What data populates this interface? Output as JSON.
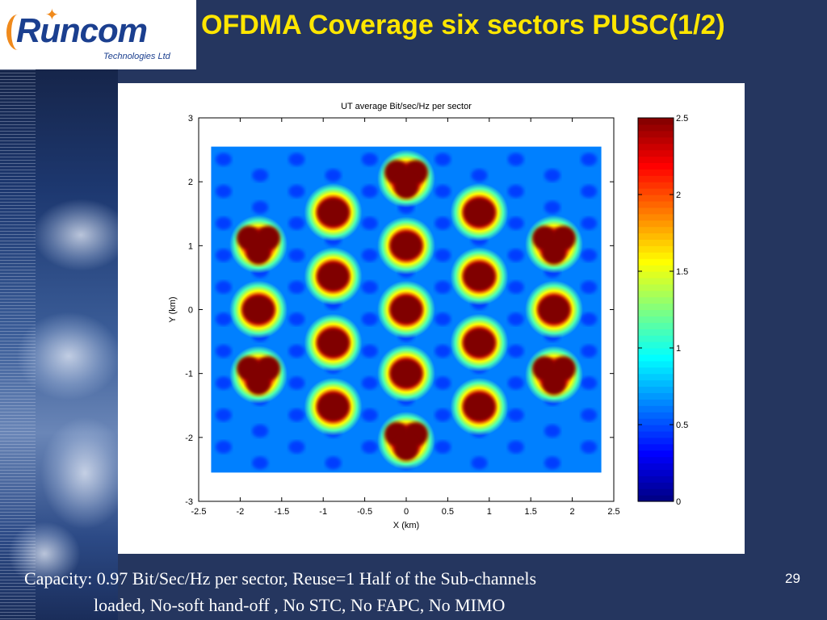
{
  "slide": {
    "title": "OFDMA Coverage six sectors PUSC(1/2)",
    "caption_line1": "Capacity: 0.97 Bit/Sec/Hz per sector, Reuse=1 Half of the Sub-channels",
    "caption_line2": "loaded, No-soft hand-off , No STC, No FAPC, No MIMO",
    "page_number": "29"
  },
  "logo": {
    "brand": "Runcom",
    "tagline": "Technologies Ltd",
    "brand_color": "#1b3f8f",
    "accent_color": "#f08a1c"
  },
  "colors": {
    "background": "#25365f",
    "title": "#ffe600",
    "caption": "#ffffff"
  },
  "chart_data": {
    "type": "heatmap",
    "title": "UT average Bit/sec/Hz per sector",
    "xlabel": "X (km)",
    "ylabel": "Y (km)",
    "xlim": [
      -2.5,
      2.5
    ],
    "ylim": [
      -3,
      3
    ],
    "xticks": [
      -2.5,
      -2,
      -1.5,
      -1,
      -0.5,
      0,
      0.5,
      1,
      1.5,
      2,
      2.5
    ],
    "yticks": [
      -3,
      -2,
      -1,
      0,
      1,
      2,
      3
    ],
    "colormap": "jet",
    "colorbar": {
      "range": [
        0,
        2.5
      ],
      "ticks": [
        0,
        0.5,
        1,
        1.5,
        2,
        2.5
      ]
    },
    "data_extent": {
      "x": [
        -2.35,
        2.35
      ],
      "y": [
        -2.55,
        2.55
      ]
    },
    "background_level": 0.5,
    "peak_level": 2.5,
    "hotspots": [
      {
        "x": 0,
        "y": 2.05,
        "shape": "clover"
      },
      {
        "x": 0,
        "y": -2.05,
        "shape": "clover"
      },
      {
        "x": 1.78,
        "y": 1.02,
        "shape": "clover"
      },
      {
        "x": -1.78,
        "y": 1.02,
        "shape": "clover"
      },
      {
        "x": 1.78,
        "y": -1.02,
        "shape": "clover"
      },
      {
        "x": -1.78,
        "y": -1.02,
        "shape": "clover"
      },
      {
        "x": -0.88,
        "y": 1.52,
        "shape": "blob"
      },
      {
        "x": 0.88,
        "y": 1.52,
        "shape": "blob"
      },
      {
        "x": -0.88,
        "y": -1.52,
        "shape": "blob"
      },
      {
        "x": 0.88,
        "y": -1.52,
        "shape": "blob"
      },
      {
        "x": -1.78,
        "y": 0,
        "shape": "blob"
      },
      {
        "x": 1.78,
        "y": 0,
        "shape": "blob"
      },
      {
        "x": 0,
        "y": 1.0,
        "shape": "blob"
      },
      {
        "x": 0,
        "y": 0,
        "shape": "blob"
      },
      {
        "x": 0,
        "y": -1.0,
        "shape": "blob"
      },
      {
        "x": -0.88,
        "y": 0.52,
        "shape": "blob"
      },
      {
        "x": 0.88,
        "y": 0.52,
        "shape": "blob"
      },
      {
        "x": -0.88,
        "y": -0.52,
        "shape": "blob"
      },
      {
        "x": 0.88,
        "y": -0.52,
        "shape": "blob"
      }
    ]
  }
}
